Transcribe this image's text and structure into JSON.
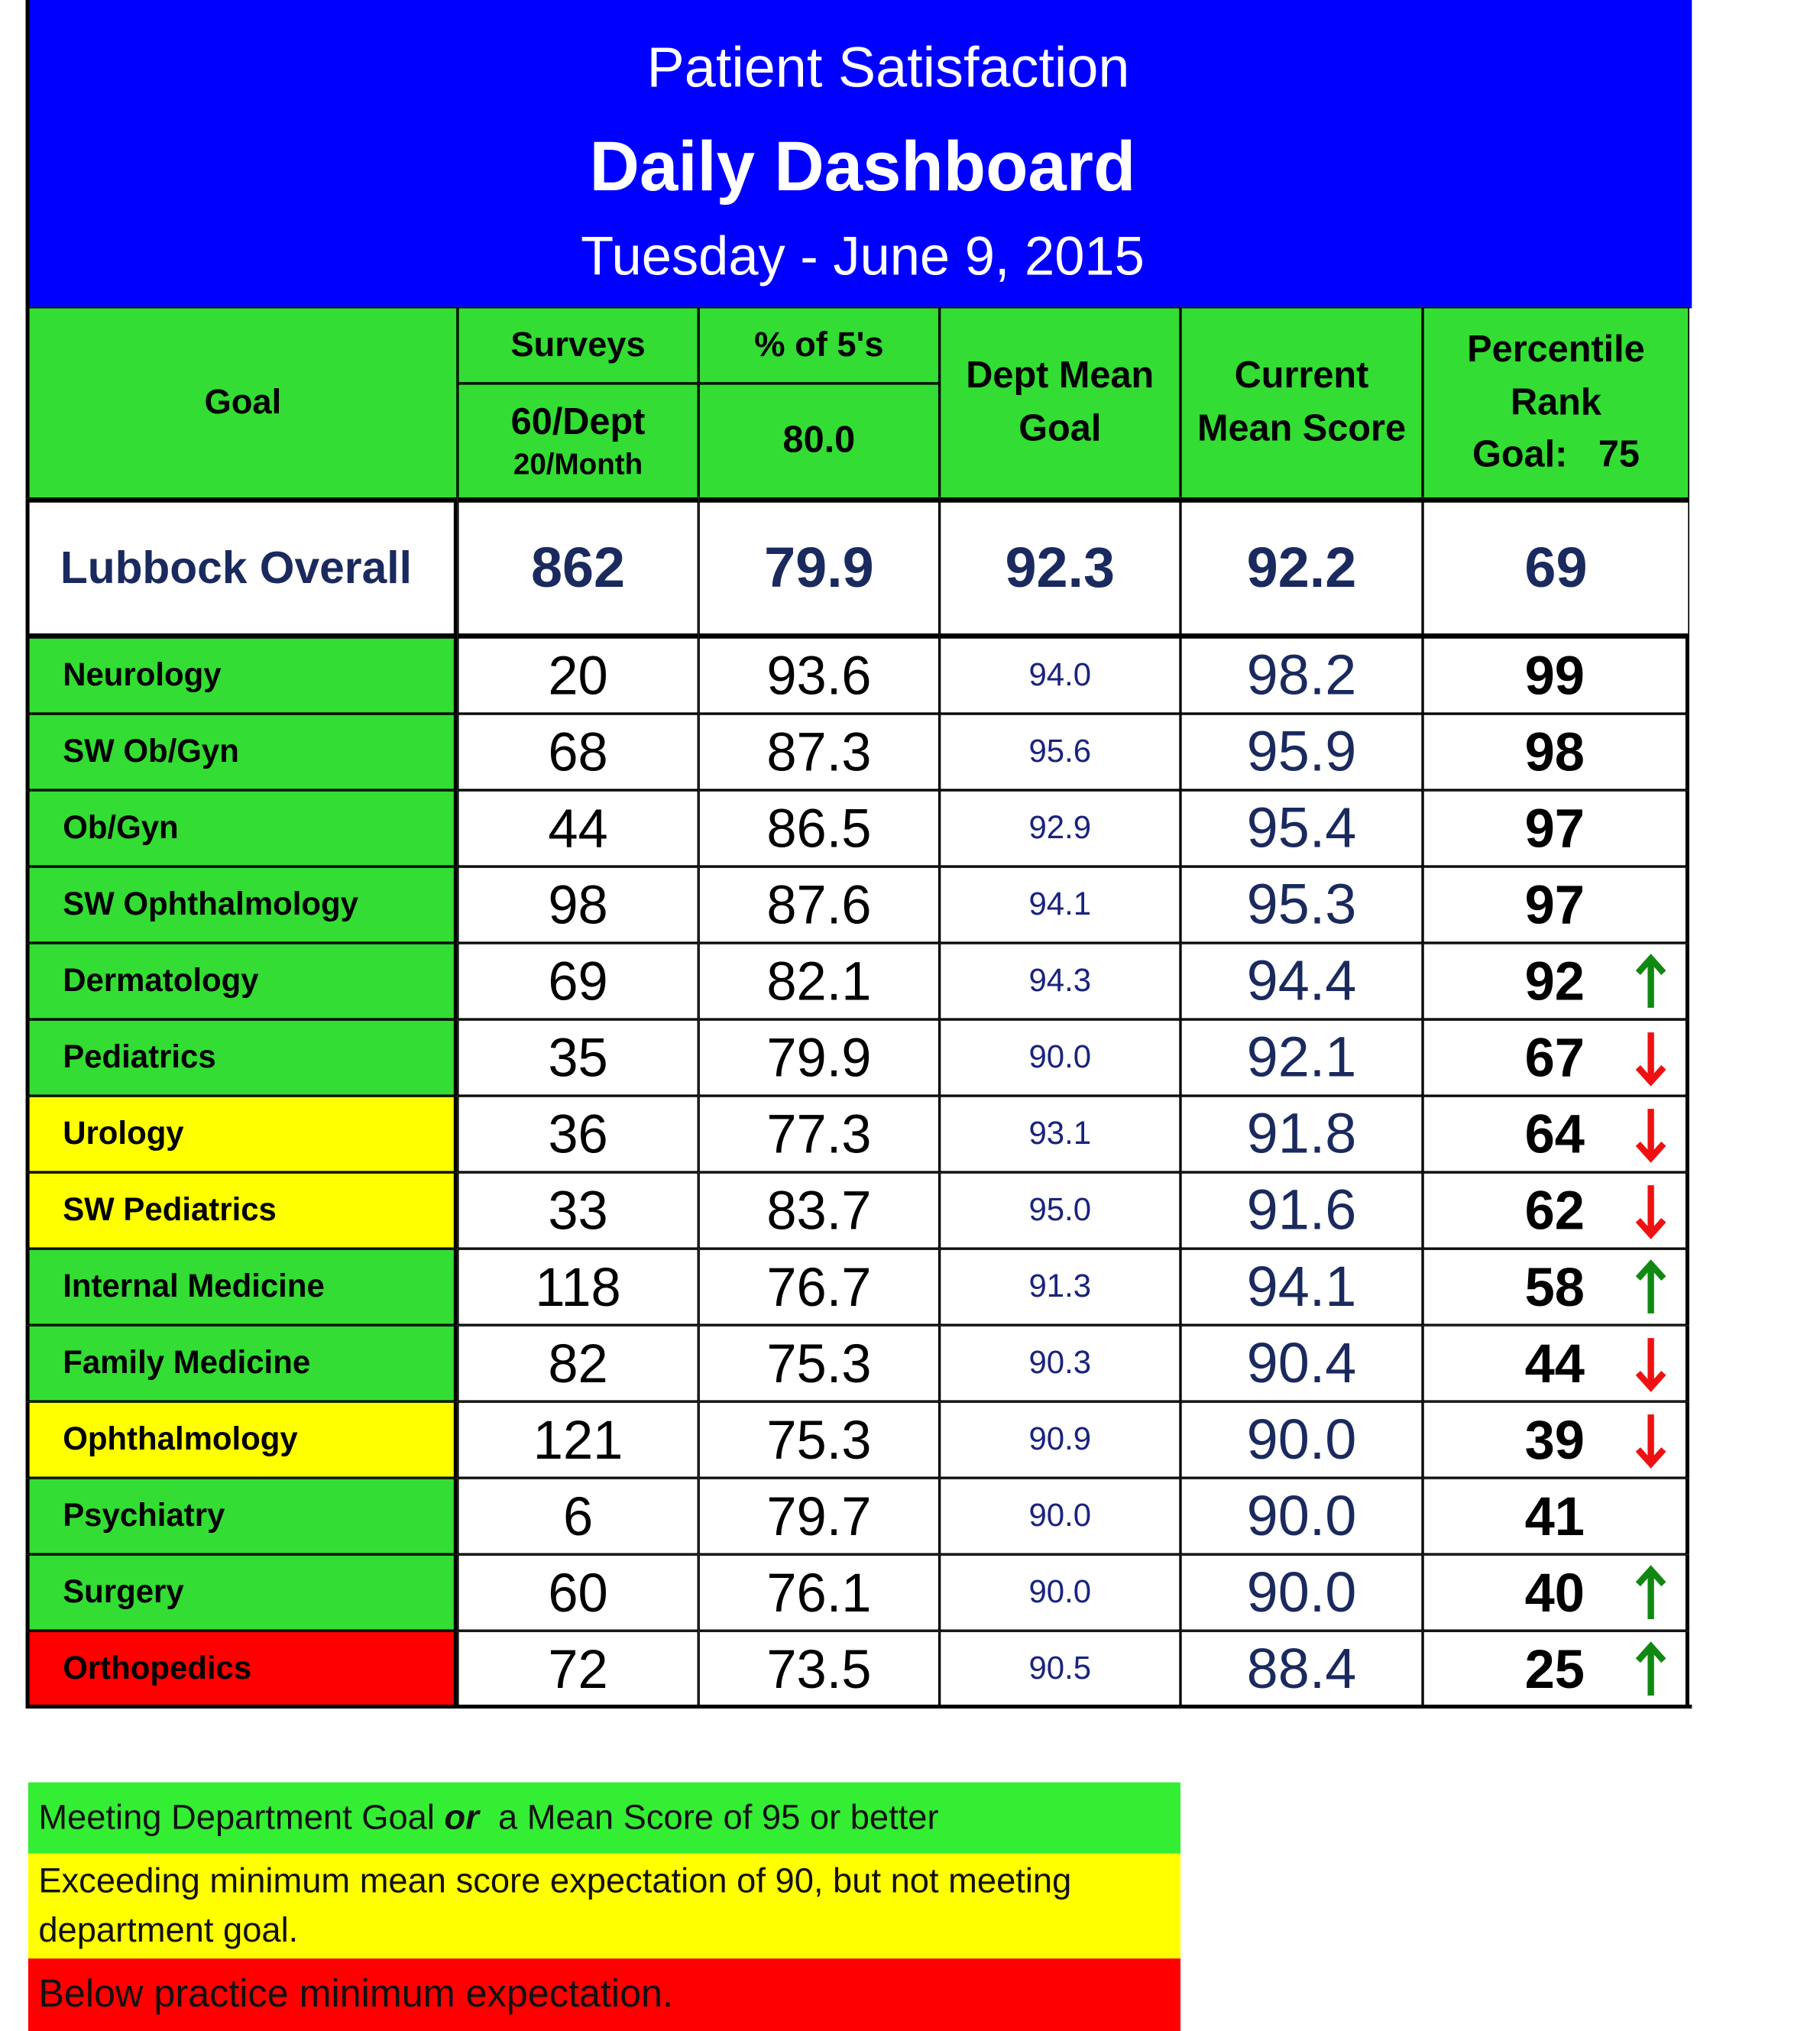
{
  "header": {
    "line1": "Patient Satisfaction",
    "title": "Daily Dashboard",
    "date": "Tuesday - June 9, 2015"
  },
  "columns": {
    "goal": "Goal",
    "surveys": {
      "label": "Surveys",
      "target": "60/Dept",
      "sub": "20/Month"
    },
    "fives": {
      "label": "% of 5's",
      "target": "80.0"
    },
    "dept_mean": [
      "Dept Mean",
      "Goal"
    ],
    "current_mean": [
      "Current",
      "Mean Score"
    ],
    "percentile": [
      "Percentile",
      "Rank",
      "Goal:   75"
    ]
  },
  "overall": {
    "name": "Lubbock Overall",
    "cells": [
      "862",
      "79.9",
      "92.3",
      "92.2",
      "69"
    ]
  },
  "rows": [
    {
      "name": "Neurology",
      "status": "green",
      "cells": [
        "20",
        "93.6",
        "94.0",
        "98.2",
        "99"
      ],
      "trend": null
    },
    {
      "name": "SW Ob/Gyn",
      "status": "green",
      "cells": [
        "68",
        "87.3",
        "95.6",
        "95.9",
        "98"
      ],
      "trend": null
    },
    {
      "name": "Ob/Gyn",
      "status": "green",
      "cells": [
        "44",
        "86.5",
        "92.9",
        "95.4",
        "97"
      ],
      "trend": null
    },
    {
      "name": "SW Ophthalmology",
      "status": "green",
      "cells": [
        "98",
        "87.6",
        "94.1",
        "95.3",
        "97"
      ],
      "trend": null
    },
    {
      "name": "Dermatology",
      "status": "green",
      "cells": [
        "69",
        "82.1",
        "94.3",
        "94.4",
        "92"
      ],
      "trend": "up"
    },
    {
      "name": "Pediatrics",
      "status": "green",
      "cells": [
        "35",
        "79.9",
        "90.0",
        "92.1",
        "67"
      ],
      "trend": "down"
    },
    {
      "name": "Urology",
      "status": "yellow",
      "cells": [
        "36",
        "77.3",
        "93.1",
        "91.8",
        "64"
      ],
      "trend": "down"
    },
    {
      "name": "SW Pediatrics",
      "status": "yellow",
      "cells": [
        "33",
        "83.7",
        "95.0",
        "91.6",
        "62"
      ],
      "trend": "down"
    },
    {
      "name": "Internal Medicine",
      "status": "green",
      "cells": [
        "118",
        "76.7",
        "91.3",
        "94.1",
        "58"
      ],
      "trend": "up"
    },
    {
      "name": "Family Medicine",
      "status": "green",
      "cells": [
        "82",
        "75.3",
        "90.3",
        "90.4",
        "44"
      ],
      "trend": "down"
    },
    {
      "name": "Ophthalmology",
      "status": "yellow",
      "cells": [
        "121",
        "75.3",
        "90.9",
        "90.0",
        "39"
      ],
      "trend": "down"
    },
    {
      "name": "Psychiatry",
      "status": "green",
      "cells": [
        "6",
        "79.7",
        "90.0",
        "90.0",
        "41"
      ],
      "trend": null
    },
    {
      "name": "Surgery",
      "status": "green",
      "cells": [
        "60",
        "76.1",
        "90.0",
        "90.0",
        "40"
      ],
      "trend": "up"
    },
    {
      "name": "Orthopedics",
      "status": "red",
      "cells": [
        "72",
        "73.5",
        "90.5",
        "88.4",
        "25"
      ],
      "trend": "up"
    }
  ],
  "legend": {
    "green": [
      "Meeting Department Goal ",
      "or",
      "  a Mean Score of 95 or better"
    ],
    "yellow": "Exceeding minimum mean score expectation of 90, but not meeting department goal.",
    "red": "Below practice minimum expectation."
  }
}
